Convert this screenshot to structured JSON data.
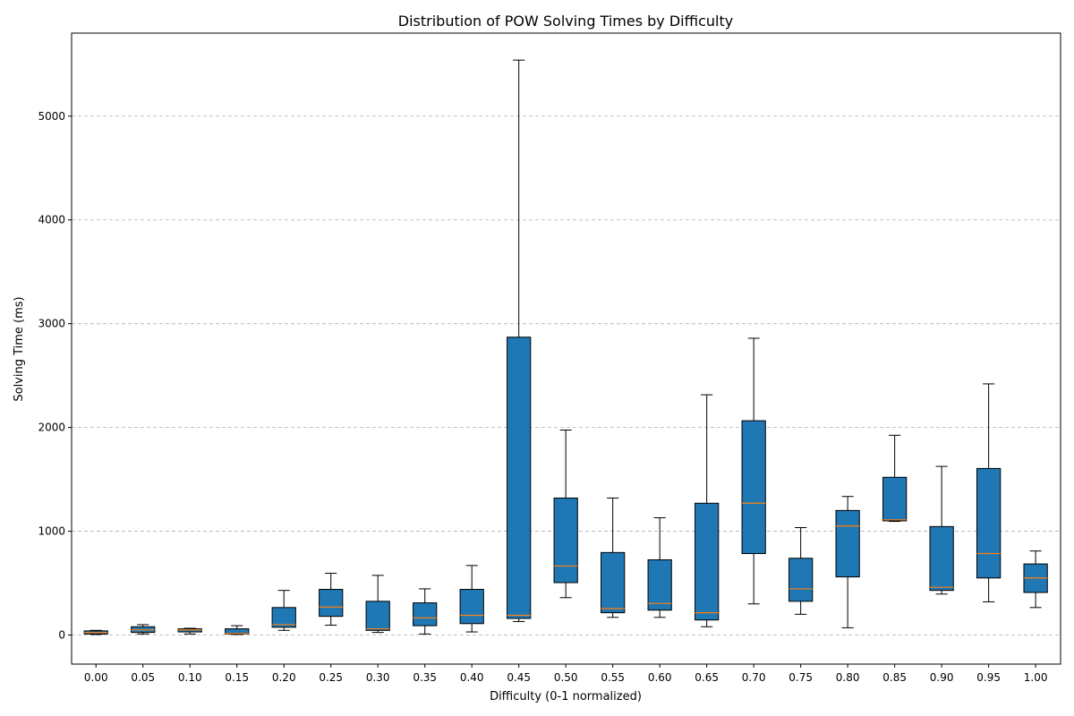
{
  "chart_data": {
    "type": "box",
    "title": "Distribution of POW Solving Times by Difficulty",
    "xlabel": "Difficulty (0-1 normalized)",
    "ylabel": "Solving Time (ms)",
    "ylim": [
      -280,
      5800
    ],
    "yticks": [
      0,
      1000,
      2000,
      3000,
      4000,
      5000
    ],
    "grid": "y",
    "categories": [
      "0.00",
      "0.05",
      "0.10",
      "0.15",
      "0.20",
      "0.25",
      "0.30",
      "0.35",
      "0.40",
      "0.45",
      "0.50",
      "0.55",
      "0.60",
      "0.65",
      "0.70",
      "0.75",
      "0.80",
      "0.85",
      "0.90",
      "0.95",
      "1.00"
    ],
    "boxes": [
      {
        "whislo": 5,
        "q1": 10,
        "med": 25,
        "q3": 40,
        "whishi": 45
      },
      {
        "whislo": 10,
        "q1": 25,
        "med": 50,
        "q3": 80,
        "whishi": 100
      },
      {
        "whislo": 10,
        "q1": 30,
        "med": 50,
        "q3": 60,
        "whishi": 65
      },
      {
        "whislo": 5,
        "q1": 10,
        "med": 15,
        "q3": 60,
        "whishi": 90
      },
      {
        "whislo": 45,
        "q1": 75,
        "med": 100,
        "q3": 265,
        "whishi": 430
      },
      {
        "whislo": 95,
        "q1": 180,
        "med": 270,
        "q3": 440,
        "whishi": 595
      },
      {
        "whislo": 25,
        "q1": 45,
        "med": 60,
        "q3": 325,
        "whishi": 575
      },
      {
        "whislo": 10,
        "q1": 90,
        "med": 165,
        "q3": 310,
        "whishi": 445
      },
      {
        "whislo": 30,
        "q1": 110,
        "med": 190,
        "q3": 440,
        "whishi": 670
      },
      {
        "whislo": 130,
        "q1": 160,
        "med": 190,
        "q3": 2870,
        "whishi": 5540
      },
      {
        "whislo": 360,
        "q1": 505,
        "med": 665,
        "q3": 1320,
        "whishi": 1975
      },
      {
        "whislo": 170,
        "q1": 215,
        "med": 255,
        "q3": 795,
        "whishi": 1320
      },
      {
        "whislo": 170,
        "q1": 240,
        "med": 305,
        "q3": 725,
        "whishi": 1130
      },
      {
        "whislo": 80,
        "q1": 145,
        "med": 215,
        "q3": 1270,
        "whishi": 2315
      },
      {
        "whislo": 300,
        "q1": 785,
        "med": 1270,
        "q3": 2065,
        "whishi": 2860
      },
      {
        "whislo": 200,
        "q1": 325,
        "med": 445,
        "q3": 740,
        "whishi": 1035
      },
      {
        "whislo": 70,
        "q1": 560,
        "med": 1050,
        "q3": 1200,
        "whishi": 1335
      },
      {
        "whislo": 1095,
        "q1": 1100,
        "med": 1110,
        "q3": 1520,
        "whishi": 1925
      },
      {
        "whislo": 395,
        "q1": 430,
        "med": 460,
        "q3": 1045,
        "whishi": 1625
      },
      {
        "whislo": 320,
        "q1": 550,
        "med": 785,
        "q3": 1605,
        "whishi": 2420
      },
      {
        "whislo": 265,
        "q1": 410,
        "med": 550,
        "q3": 685,
        "whishi": 810
      }
    ],
    "colors": {
      "box": "#1f77b4",
      "median": "#ff7f0e",
      "grid": "#b0b0b0"
    }
  }
}
